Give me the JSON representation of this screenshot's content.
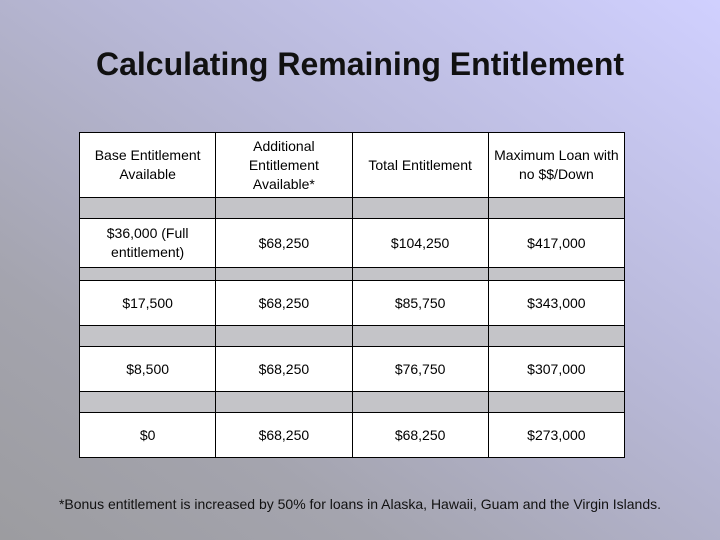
{
  "title": "Calculating Remaining Entitlement",
  "table": {
    "headers": [
      "Base Entitlement Available",
      "Additional Entitlement Available*",
      "Total Entitlement",
      "Maximum Loan with no $$/Down"
    ],
    "rows": [
      [
        "$36,000 (Full entitlement)",
        "$68,250",
        "$104,250",
        "$417,000"
      ],
      [
        "$17,500",
        "$68,250",
        "$85,750",
        "$343,000"
      ],
      [
        "$8,500",
        "$68,250",
        "$76,750",
        "$307,000"
      ],
      [
        "$0",
        "$68,250",
        "$68,250",
        "$273,000"
      ]
    ]
  },
  "footnote": "*Bonus entitlement is increased by 50% for loans in Alaska, Hawaii, Guam and the Virgin Islands."
}
